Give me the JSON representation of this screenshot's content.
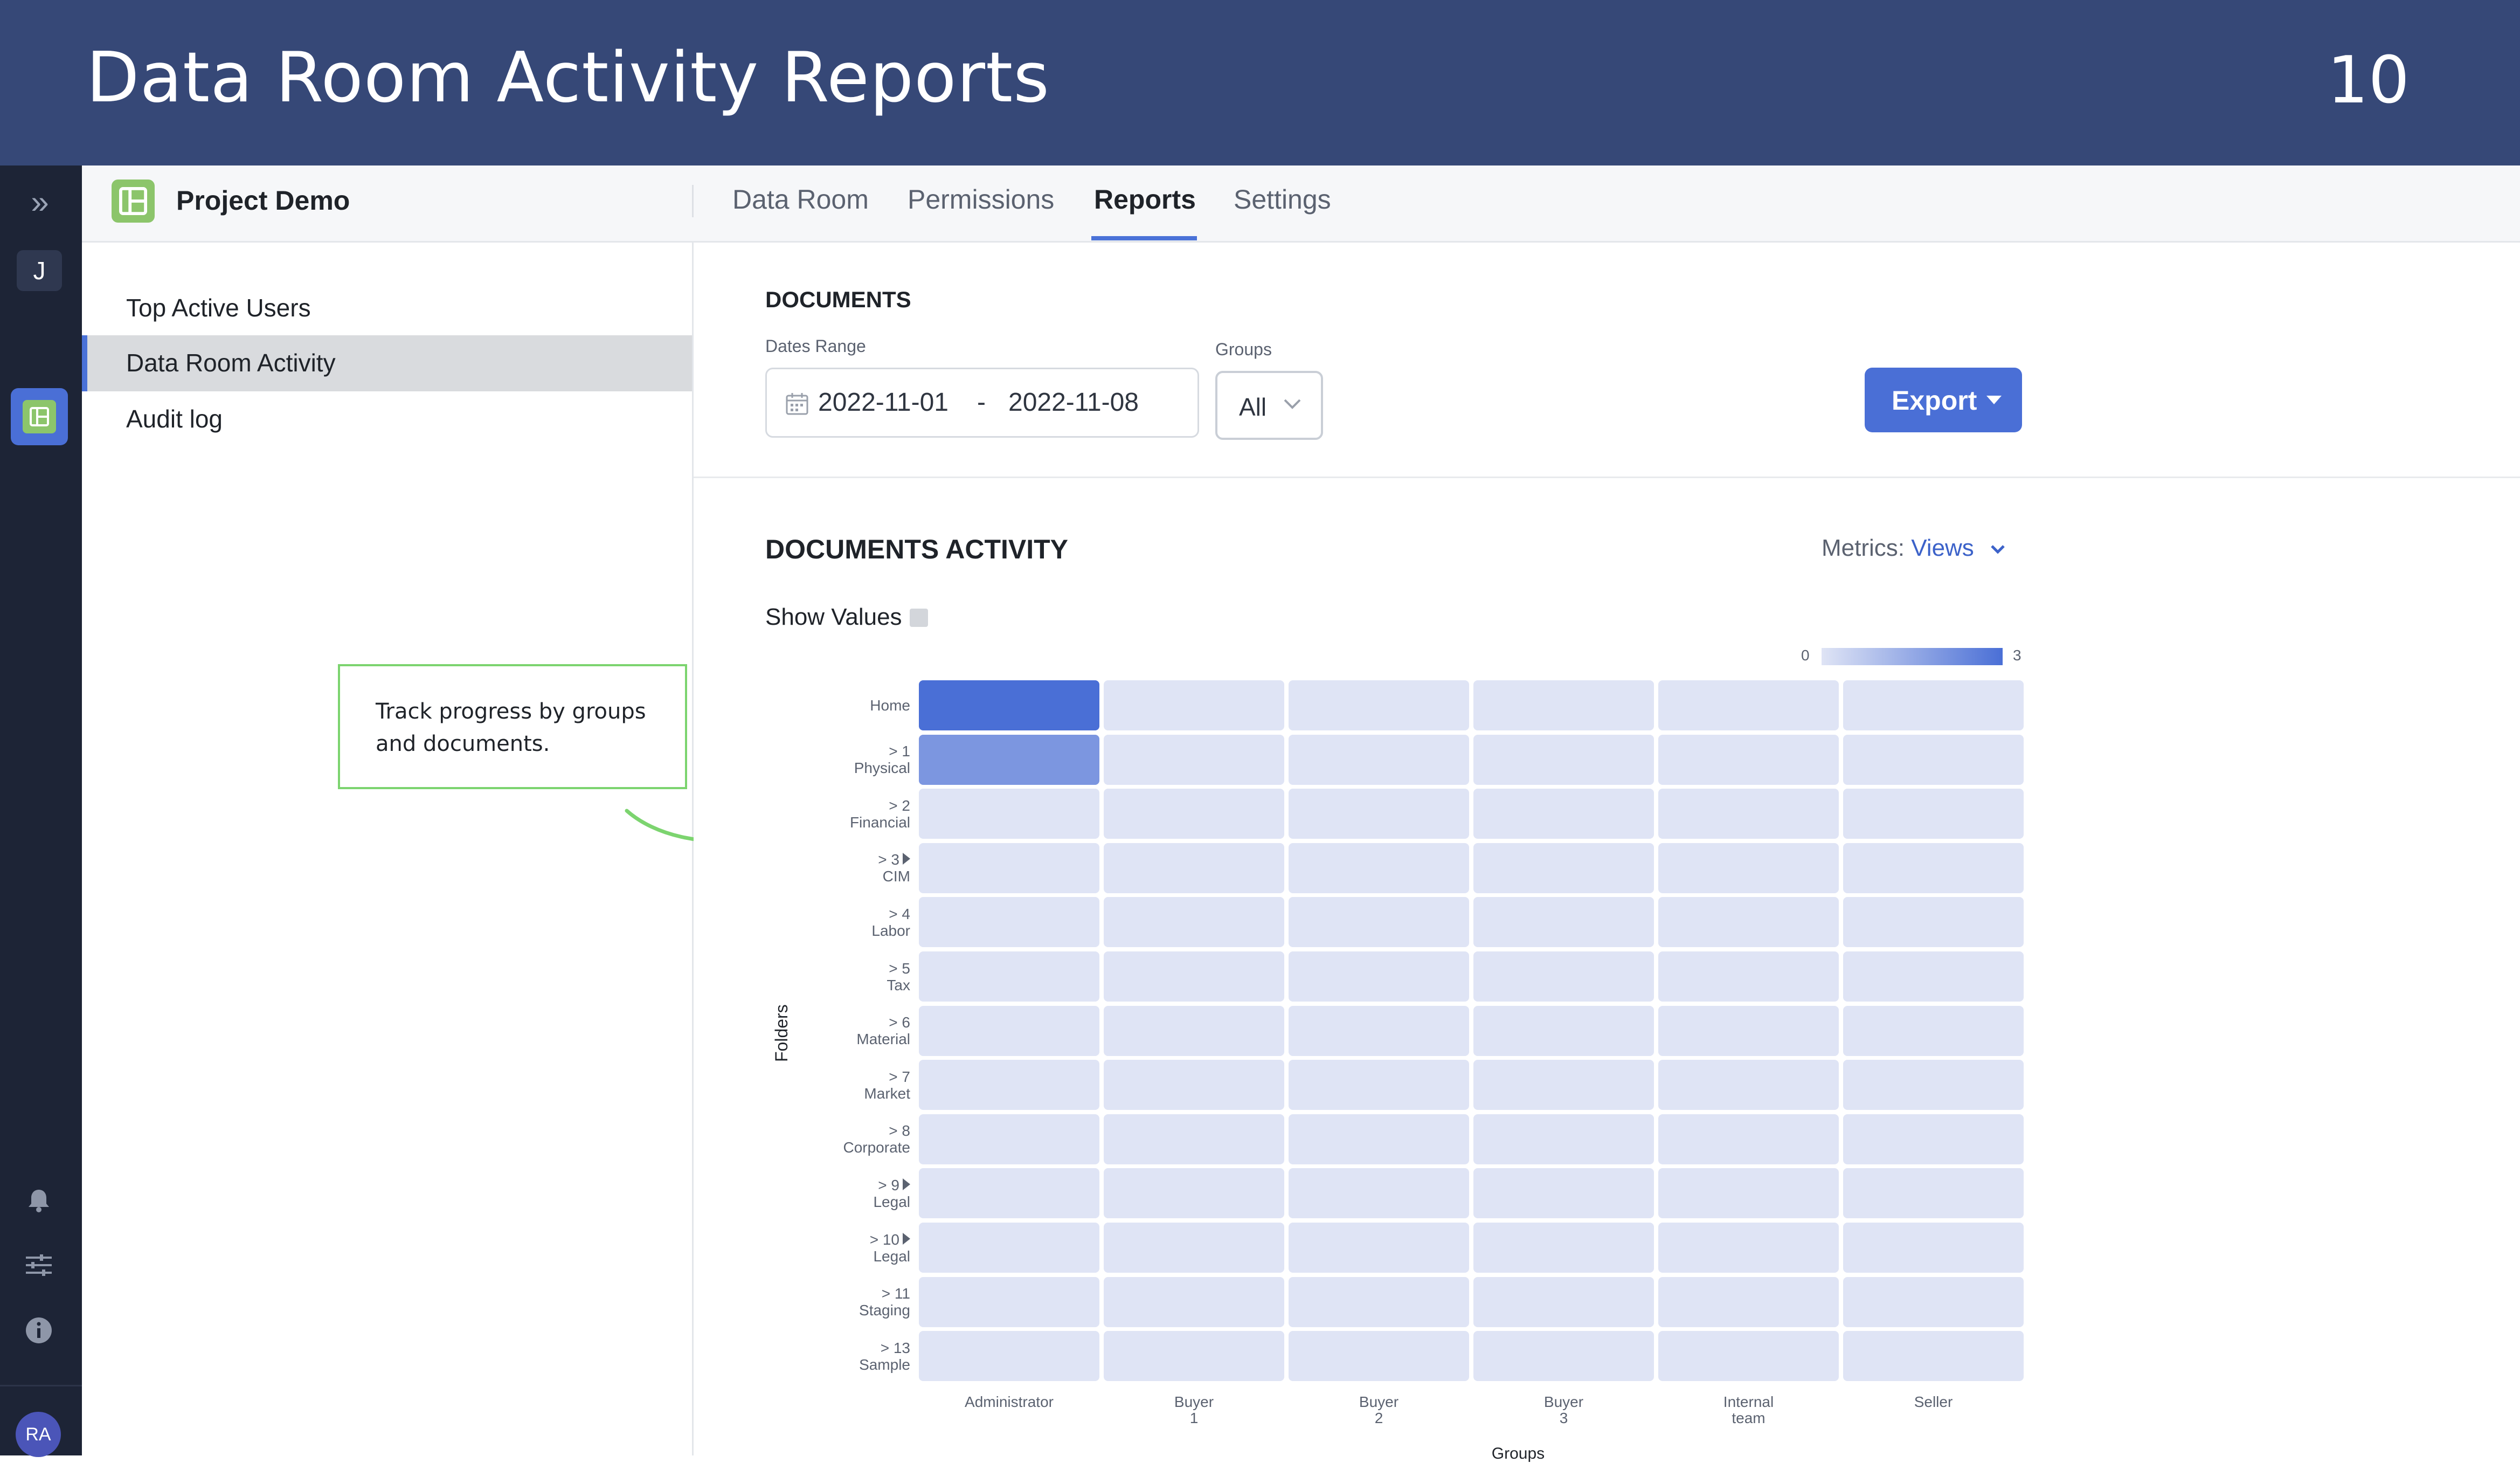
{
  "banner": {
    "title": "Data Room Activity Reports",
    "page_number": "10"
  },
  "leftnav": {
    "user_initial": "J",
    "avatar_initials": "RA"
  },
  "topbar": {
    "project_name": "Project Demo",
    "tabs": [
      {
        "label": "Data Room",
        "active": false
      },
      {
        "label": "Permissions",
        "active": false
      },
      {
        "label": "Reports",
        "active": true
      },
      {
        "label": "Settings",
        "active": false
      }
    ]
  },
  "sidebar": {
    "items": [
      {
        "label": "Top Active Users",
        "active": false
      },
      {
        "label": "Data Room Activity",
        "active": true
      },
      {
        "label": "Audit log",
        "active": false
      }
    ]
  },
  "callout": {
    "text": "Track progress by groups and documents."
  },
  "documents": {
    "title": "DOCUMENTS",
    "dates_range_label": "Dates Range",
    "date_from": "2022-11-01",
    "date_separator": "-",
    "date_to": "2022-11-08",
    "groups_label": "Groups",
    "groups_value": "All",
    "export_label": "Export"
  },
  "activity": {
    "title": "DOCUMENTS ACTIVITY",
    "metrics_label": "Metrics:",
    "metrics_value": "Views",
    "show_values_label": "Show Values",
    "legend_min": "0",
    "legend_max": "3"
  },
  "colors": {
    "banner": "#364877",
    "accent": "#4a6fd6",
    "cell_low": "#dfe4f5",
    "cell_high": "#4a6fd6",
    "callout_border": "#7cd46f"
  },
  "chart_data": {
    "type": "heatmap",
    "title": "",
    "xlabel": "Groups",
    "ylabel": "Folders",
    "x_categories": [
      [
        "Administrator"
      ],
      [
        "Buyer",
        "1"
      ],
      [
        "Buyer",
        "2"
      ],
      [
        "Buyer",
        "3"
      ],
      [
        "Internal",
        "team"
      ],
      [
        "Seller"
      ]
    ],
    "y_categories": [
      {
        "lines": [
          "Home"
        ],
        "expandable": false
      },
      {
        "lines": [
          "> 1",
          "Physical"
        ],
        "expandable": false
      },
      {
        "lines": [
          "> 2",
          "Financial"
        ],
        "expandable": false
      },
      {
        "lines": [
          "> 3",
          "CIM"
        ],
        "expandable": true
      },
      {
        "lines": [
          "> 4",
          "Labor"
        ],
        "expandable": false
      },
      {
        "lines": [
          "> 5",
          "Tax"
        ],
        "expandable": false
      },
      {
        "lines": [
          "> 6",
          "Material"
        ],
        "expandable": false
      },
      {
        "lines": [
          "> 7",
          "Market"
        ],
        "expandable": false
      },
      {
        "lines": [
          "> 8",
          "Corporate"
        ],
        "expandable": false
      },
      {
        "lines": [
          "> 9",
          "Legal"
        ],
        "expandable": true
      },
      {
        "lines": [
          "> 10",
          "Legal"
        ],
        "expandable": true
      },
      {
        "lines": [
          "> 11",
          "Staging"
        ],
        "expandable": false
      },
      {
        "lines": [
          "> 13",
          "Sample"
        ],
        "expandable": false
      }
    ],
    "values": [
      [
        3,
        0,
        0,
        0,
        0,
        0
      ],
      [
        2,
        0,
        0,
        0,
        0,
        0
      ],
      [
        0,
        0,
        0,
        0,
        0,
        0
      ],
      [
        0,
        0,
        0,
        0,
        0,
        0
      ],
      [
        0,
        0,
        0,
        0,
        0,
        0
      ],
      [
        0,
        0,
        0,
        0,
        0,
        0
      ],
      [
        0,
        0,
        0,
        0,
        0,
        0
      ],
      [
        0,
        0,
        0,
        0,
        0,
        0
      ],
      [
        0,
        0,
        0,
        0,
        0,
        0
      ],
      [
        0,
        0,
        0,
        0,
        0,
        0
      ],
      [
        0,
        0,
        0,
        0,
        0,
        0
      ],
      [
        0,
        0,
        0,
        0,
        0,
        0
      ],
      [
        0,
        0,
        0,
        0,
        0,
        0
      ]
    ],
    "color_range": [
      0,
      3
    ]
  }
}
